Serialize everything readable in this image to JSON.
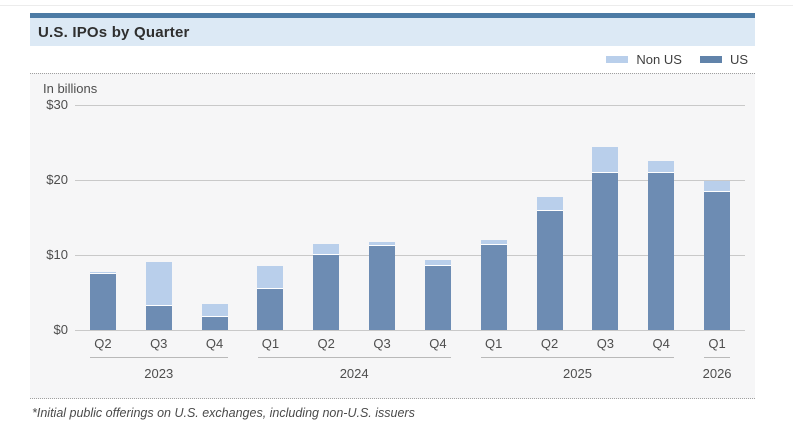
{
  "header": {
    "title": "U.S. IPOs by Quarter"
  },
  "legend": {
    "items": [
      {
        "label": "Non US",
        "color": "#b9cfeb"
      },
      {
        "label": "US",
        "color": "#6183aa"
      }
    ]
  },
  "footnote": "*Initial public offerings on U.S. exchanges, including non-U.S. issuers",
  "colors": {
    "us_bar": "#6d8cb3",
    "non_us_bar": "#b9cfeb",
    "header_border": "#4c7ba5",
    "header_band": "#dce9f5",
    "panel_bg": "#f6f6f7",
    "grid": "#c9c9c9"
  },
  "chart_data": {
    "type": "bar",
    "stacked": true,
    "title": "U.S. IPOs by Quarter",
    "unit_label": "In billions",
    "ylabel": "In billions",
    "xlabel": "",
    "categories": [
      "Q2",
      "Q3",
      "Q4",
      "Q1",
      "Q2",
      "Q3",
      "Q4",
      "Q1",
      "Q2",
      "Q3",
      "Q4",
      "Q1"
    ],
    "year_groups": [
      {
        "year": "2023",
        "count": 3
      },
      {
        "year": "2024",
        "count": 4
      },
      {
        "year": "2025",
        "count": 4
      },
      {
        "year": "2026",
        "count": 1
      }
    ],
    "series": [
      {
        "name": "US",
        "color": "#6d8cb3",
        "values": [
          7.5,
          3.2,
          1.7,
          5.5,
          10.0,
          11.2,
          8.5,
          11.3,
          15.9,
          21.0,
          20.9,
          18.4
        ]
      },
      {
        "name": "Non US",
        "color": "#b9cfeb",
        "values": [
          0.3,
          5.9,
          1.8,
          3.0,
          1.5,
          0.5,
          0.8,
          0.7,
          1.9,
          3.4,
          1.7,
          1.5
        ]
      }
    ],
    "totals": [
      7.8,
      9.1,
      3.5,
      8.5,
      11.5,
      11.7,
      9.3,
      12.0,
      17.8,
      24.4,
      22.6,
      19.9
    ],
    "ylim": [
      0,
      30
    ],
    "yticks": [
      {
        "value": 0,
        "label": "$0"
      },
      {
        "value": 10,
        "label": "$10"
      },
      {
        "value": 20,
        "label": "$20"
      },
      {
        "value": 30,
        "label": "$30"
      }
    ],
    "grid": true,
    "legend_position": "top-right"
  }
}
